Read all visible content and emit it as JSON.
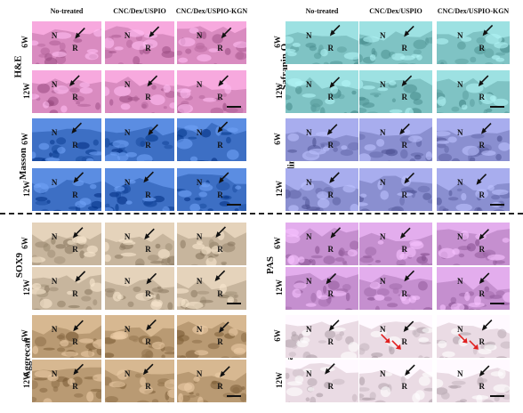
{
  "column_headers": {
    "left": [
      "No-treated",
      "CNC/Dex/USPIO",
      "CNC/Dex/USPIO-KGN"
    ],
    "right": [
      "No-treated",
      "CNC/Dex/USPIO",
      "CNC/Dex/USPIO-KGN"
    ]
  },
  "stains": {
    "he": "H&E",
    "masson": "Masson",
    "safranin": "Safranin O",
    "toluidine": "Toluidine blue",
    "sox9": "SOX9",
    "aggrecan": "Aggrecan",
    "pas": "PAS",
    "prussian": "Prussian blue"
  },
  "timepoints": {
    "w6": "6W",
    "w12": "12W"
  },
  "panel_labels": {
    "n": "N",
    "r": "R"
  },
  "colors": {
    "he": "#d98bc0",
    "masson": "#3d6fc4",
    "safranin": "#7fc3c4",
    "toluidine": "#8a8fd0",
    "sox9": "#c7b59d",
    "aggrecan": "#b99a73",
    "pas": "#c58fcf",
    "prussian": "#eadbe4",
    "arrow_black": "#111111",
    "arrow_red": "#e02020"
  }
}
